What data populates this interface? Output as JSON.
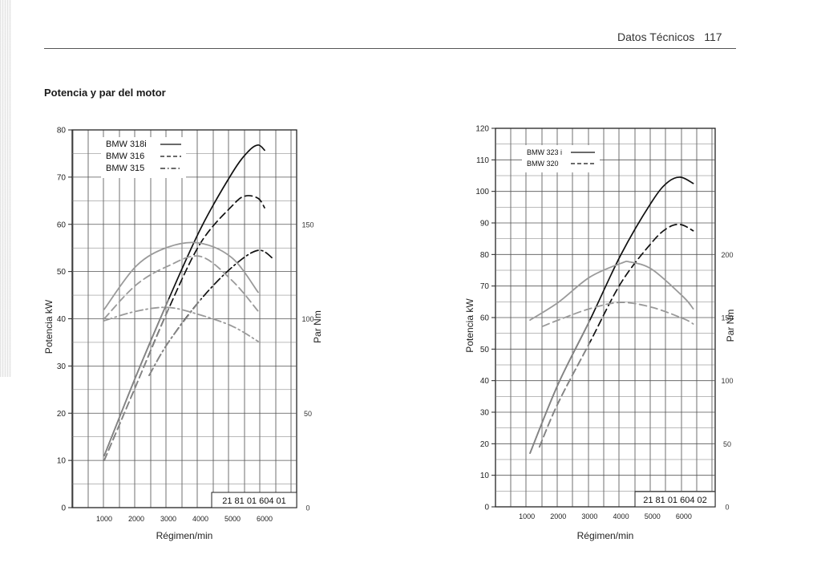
{
  "header": {
    "section": "Datos Técnicos",
    "page_number": "117"
  },
  "section_title": "Potencia y par del motor",
  "chart_data": [
    {
      "type": "line",
      "xlabel": "Régimen/min",
      "ylabel": "Potencia kW",
      "y2label": "Par Nm",
      "x_ticks": [
        1000,
        2000,
        3000,
        4000,
        5000,
        6000
      ],
      "xlim": [
        0,
        7000
      ],
      "ylim": [
        0,
        80
      ],
      "y_ticks": [
        0,
        10,
        20,
        30,
        40,
        50,
        60,
        70,
        80
      ],
      "y2lim": [
        0,
        200
      ],
      "y2_ticks": [
        0,
        50,
        100,
        150
      ],
      "figure_code": "21 81 01 604 01",
      "legend": [
        {
          "label": "BMW 318i",
          "style": "solid"
        },
        {
          "label": "BMW 316",
          "style": "dashed"
        },
        {
          "label": "BMW 315",
          "style": "dashdot"
        }
      ],
      "series": [
        {
          "name": "BMW 318i",
          "axis": "power",
          "style": "solid",
          "x": [
            1000,
            2000,
            3000,
            4000,
            5000,
            5500,
            5800,
            6000
          ],
          "y": [
            11,
            28,
            44,
            59,
            71,
            75.5,
            76.8,
            75.7
          ]
        },
        {
          "name": "BMW 316",
          "axis": "power",
          "style": "dashed",
          "x": [
            1000,
            2000,
            3000,
            4000,
            5000,
            5400,
            5800,
            6000
          ],
          "y": [
            10,
            26,
            42,
            56,
            64,
            66,
            65.5,
            63.5
          ]
        },
        {
          "name": "BMW 315",
          "axis": "power",
          "style": "dashdot",
          "x": [
            2400,
            3000,
            4000,
            5000,
            5800,
            6300
          ],
          "y": [
            28,
            35,
            44,
            51,
            54.5,
            52.5
          ]
        },
        {
          "name": "BMW 318i",
          "axis": "torque",
          "style": "solid",
          "x": [
            1000,
            2000,
            3000,
            4000,
            5000,
            5800
          ],
          "y": [
            105,
            128,
            138,
            140,
            132,
            114
          ]
        },
        {
          "name": "BMW 316",
          "axis": "torque",
          "style": "dashed",
          "x": [
            1000,
            2000,
            3000,
            4000,
            5000,
            5800
          ],
          "y": [
            100,
            118,
            128,
            133,
            120,
            104
          ]
        },
        {
          "name": "BMW 315",
          "axis": "torque",
          "style": "dashdot",
          "x": [
            1000,
            2000,
            3000,
            4000,
            5000,
            5800
          ],
          "y": [
            99,
            104,
            106,
            102,
            96,
            88
          ]
        }
      ]
    },
    {
      "type": "line",
      "xlabel": "Régimen/min",
      "ylabel": "Potencia kW",
      "y2label": "Par Nm",
      "x_ticks": [
        1000,
        2000,
        3000,
        4000,
        5000,
        6000
      ],
      "xlim": [
        0,
        7000
      ],
      "ylim": [
        0,
        120
      ],
      "y_ticks": [
        0,
        10,
        20,
        30,
        40,
        50,
        60,
        70,
        80,
        90,
        100,
        110,
        120
      ],
      "y2lim": [
        0,
        300
      ],
      "y2_ticks": [
        0,
        50,
        100,
        150,
        200
      ],
      "figure_code": "21 81 01 604 02",
      "legend": [
        {
          "label": "BMW 323 i",
          "style": "solid"
        },
        {
          "label": "BMW 320",
          "style": "dashed"
        }
      ],
      "series": [
        {
          "name": "BMW 323 i",
          "axis": "power",
          "style": "solid",
          "x": [
            1100,
            2000,
            3000,
            4000,
            5000,
            5500,
            5900,
            6300
          ],
          "y": [
            17,
            39,
            59,
            80,
            97,
            103,
            104.5,
            102.5
          ]
        },
        {
          "name": "BMW 320",
          "axis": "power",
          "style": "dashed",
          "x": [
            1400,
            2000,
            3000,
            4000,
            5000,
            5500,
            5900,
            6300
          ],
          "y": [
            19,
            33,
            52,
            71,
            84,
            88.5,
            89.5,
            87.5
          ]
        },
        {
          "name": "BMW 323 i",
          "axis": "torque",
          "style": "solid",
          "x": [
            1100,
            2000,
            3000,
            4000,
            4300,
            5000,
            6000,
            6300
          ],
          "y": [
            148,
            162,
            182,
            193,
            194,
            188,
            166,
            157
          ]
        },
        {
          "name": "BMW 320",
          "axis": "torque",
          "style": "dashed",
          "x": [
            1500,
            2000,
            3000,
            4000,
            5000,
            6000,
            6300
          ],
          "y": [
            143,
            148,
            157,
            162,
            158,
            149,
            145
          ]
        }
      ]
    }
  ]
}
